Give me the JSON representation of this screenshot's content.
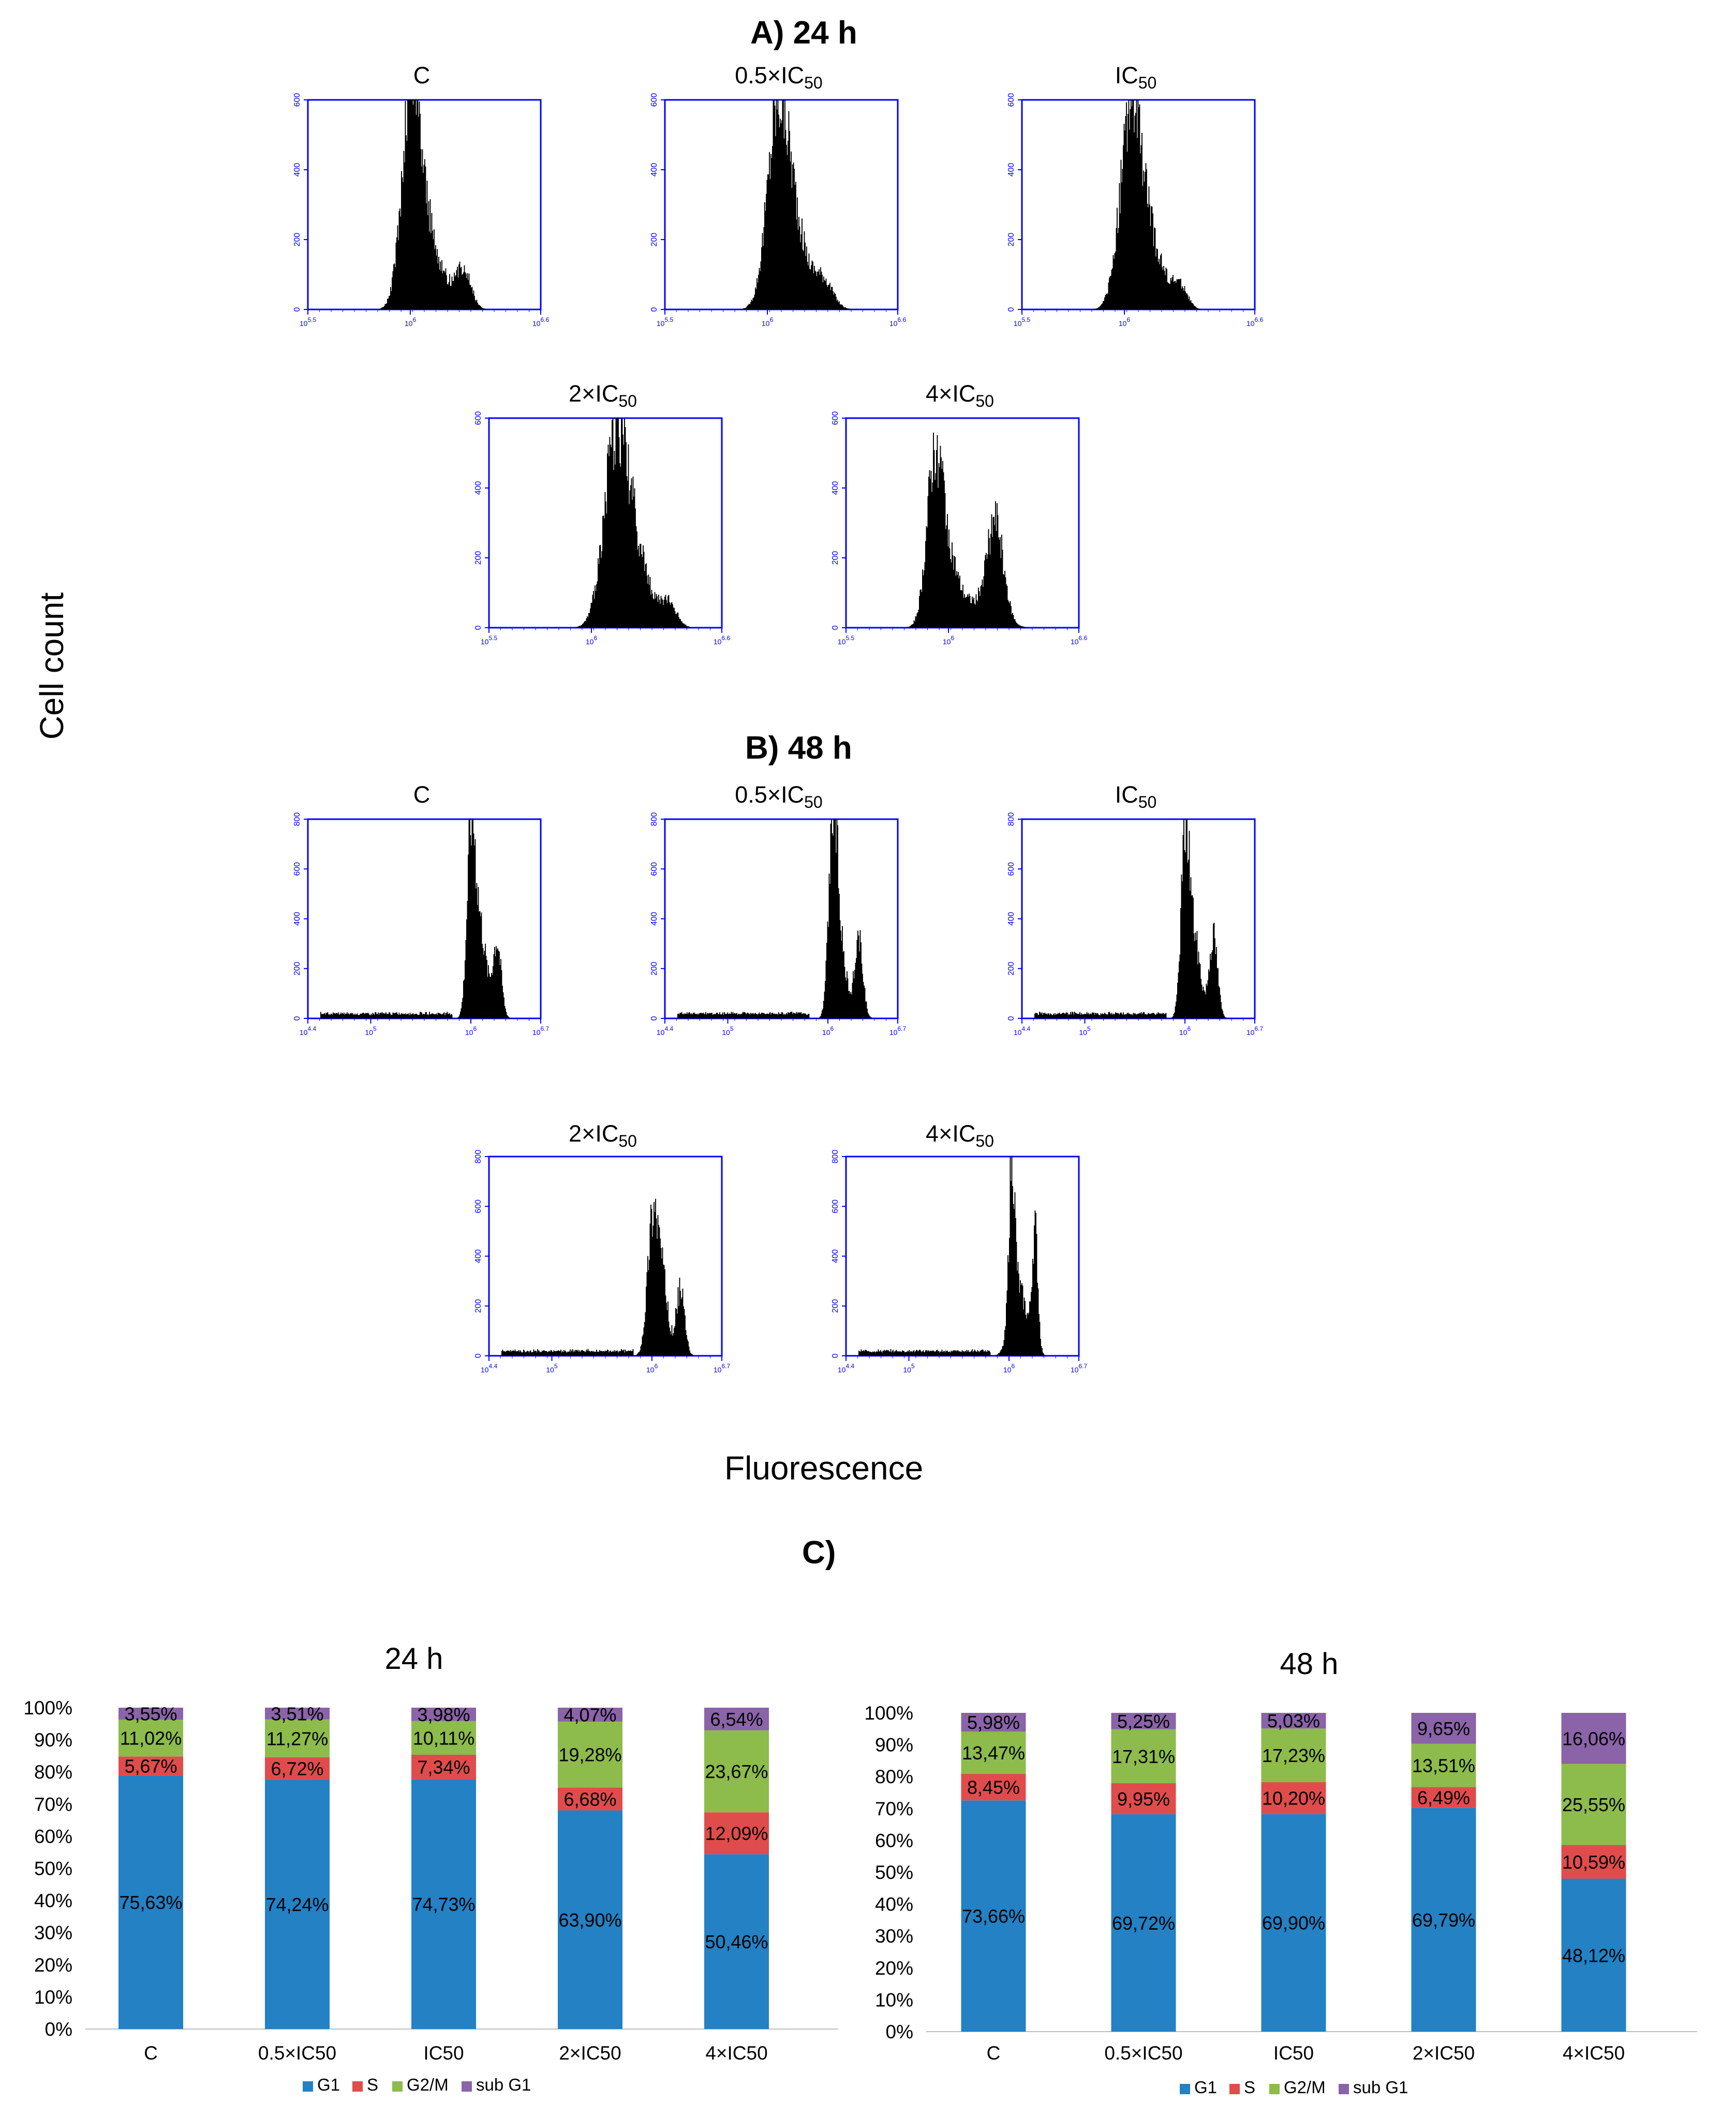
{
  "labels": {
    "section_a": "A)  24 h",
    "section_b": "B)  48 h",
    "section_c": "C)",
    "y_axis": "Cell count",
    "x_axis": "Fluorescence"
  },
  "histograms": {
    "a_titles": {
      "t1": "C",
      "t2_pre": "0.5×IC",
      "t2_sub": "50",
      "t3_pre": "IC",
      "t3_sub": "50",
      "t4_pre": "2×IC",
      "t4_sub": "50",
      "t5_pre": "4×IC",
      "t5_sub": "50"
    },
    "b_titles": {
      "t1": "C",
      "t2_pre": "0.5×IC",
      "t2_sub": "50",
      "t3_pre": "IC",
      "t3_sub": "50",
      "t4_pre": "2×IC",
      "t4_sub": "50",
      "t5_pre": "4×IC",
      "t5_sub": "50"
    },
    "a_y_ticks": [
      "0",
      "200",
      "400",
      "600"
    ],
    "a_x_ticks": [
      "10^5.5",
      "10^6",
      "10^6.6"
    ],
    "b_y_ticks": [
      "0",
      "200",
      "400",
      "600",
      "800"
    ],
    "b_x_ticks": [
      "10^4.4",
      "10^5",
      "10^6",
      "10^6.7"
    ]
  },
  "colors": {
    "axis_blue": "#0000ff",
    "g1": "#2381c4",
    "s": "#e04c4c",
    "g2m": "#8dbb4c",
    "subg1": "#8a63a8"
  },
  "chart_data": [
    {
      "type": "bar",
      "stacked": true,
      "title": "24 h",
      "categories": [
        "C",
        "0.5×IC50",
        "IC50",
        "2×IC50",
        "4×IC50"
      ],
      "y_ticks": [
        "0%",
        "10%",
        "20%",
        "30%",
        "40%",
        "50%",
        "60%",
        "70%",
        "80%",
        "90%",
        "100%"
      ],
      "ylim": [
        0,
        100
      ],
      "legend": [
        "G1",
        "S",
        "G2/M",
        "sub G1"
      ],
      "legend_labels": [
        "G1",
        "S",
        "G2/M",
        "sub G1"
      ],
      "series": [
        {
          "name": "G1",
          "values": [
            75.63,
            74.24,
            74.73,
            63.9,
            50.46
          ],
          "labels": [
            "75,63%",
            "74,24%",
            "74,73%",
            "63,90%",
            "50,46%"
          ]
        },
        {
          "name": "S",
          "values": [
            5.67,
            6.72,
            7.34,
            6.68,
            12.09
          ],
          "labels": [
            "5,67%",
            "6,72%",
            "7,34%",
            "6,68%",
            "12,09%"
          ]
        },
        {
          "name": "G2/M",
          "values": [
            11.02,
            11.27,
            10.11,
            19.28,
            23.67
          ],
          "labels": [
            "11,02%",
            "11,27%",
            "10,11%",
            "19,28%",
            "23,67%"
          ]
        },
        {
          "name": "sub G1",
          "values": [
            3.55,
            3.51,
            3.98,
            4.07,
            6.54
          ],
          "labels": [
            "3,55%",
            "3,51%",
            "3,98%",
            "4,07%",
            "6,54%"
          ]
        }
      ]
    },
    {
      "type": "bar",
      "stacked": true,
      "title": "48 h",
      "categories": [
        "C",
        "0.5×IC50",
        "IC50",
        "2×IC50",
        "4×IC50"
      ],
      "y_ticks": [
        "0%",
        "10%",
        "20%",
        "30%",
        "40%",
        "50%",
        "60%",
        "70%",
        "80%",
        "90%",
        "100%"
      ],
      "ylim": [
        0,
        100
      ],
      "legend": [
        "G1",
        "S",
        "G2/M",
        "sub G1"
      ],
      "legend_labels": [
        "G1",
        "S",
        "G2/M",
        "sub G1"
      ],
      "series": [
        {
          "name": "G1",
          "values": [
            73.66,
            69.72,
            69.9,
            69.79,
            48.12
          ],
          "labels": [
            "73,66%",
            "69,72%",
            "69,90%",
            "69,79%",
            "48,12%"
          ]
        },
        {
          "name": "S",
          "values": [
            8.45,
            9.95,
            10.2,
            6.49,
            10.59
          ],
          "labels": [
            "8,45%",
            "9,95%",
            "10,20%",
            "6,49%",
            "10,59%"
          ]
        },
        {
          "name": "G2/M",
          "values": [
            13.47,
            17.31,
            17.23,
            13.51,
            25.55
          ],
          "labels": [
            "13,47%",
            "17,31%",
            "17,23%",
            "13,51%",
            "25,55%"
          ]
        },
        {
          "name": "sub G1",
          "values": [
            5.98,
            5.25,
            5.03,
            9.65,
            16.06
          ],
          "labels": [
            "5,98%",
            "5,25%",
            "5,03%",
            "9,65%",
            "16,06%"
          ]
        }
      ]
    }
  ]
}
